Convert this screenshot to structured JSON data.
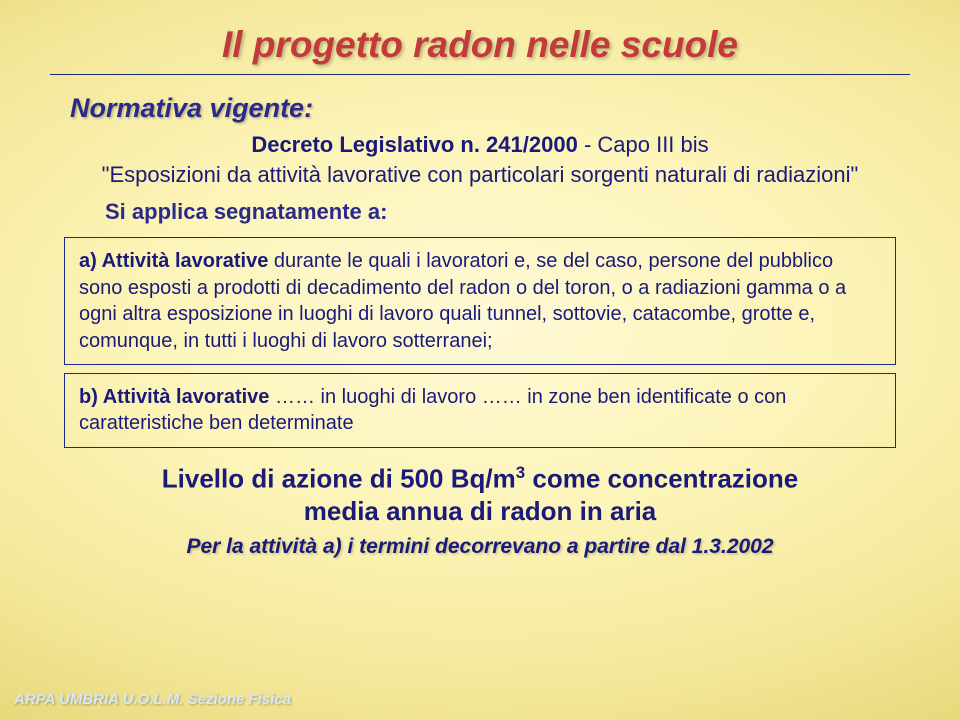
{
  "colors": {
    "title_red": "#c23a3a",
    "text_blue": "#1a1a7a",
    "heading_blue": "#2a2a8c",
    "border_blue": "#1a2a8c",
    "footer": "#d8e8f5",
    "bg_center": "#fef9d6",
    "bg_edge": "#c2ad45"
  },
  "typography": {
    "title_size": 37,
    "subtitle_size": 27,
    "body_size": 22,
    "box_size": 20,
    "level_size": 26,
    "terms_size": 21,
    "footer_size": 15
  },
  "title": "Il progetto radon nelle scuole",
  "subtitle": "Normativa vigente:",
  "decreto": {
    "line1_prefix": "Decreto Legislativo n. 241/2000",
    "line1_suffix": " - Capo III bis",
    "line2": "\"Esposizioni da attività lavorative con particolari sorgenti naturali di radiazioni\""
  },
  "applies": "Si applica segnatamente a:",
  "box_a": {
    "label": "a) Attività lavorative",
    "text": " durante le quali i lavoratori e, se del caso, persone del pubblico sono esposti a prodotti di decadimento del radon o del toron, o a radiazioni gamma o a ogni altra esposizione in luoghi di lavoro quali tunnel, sottovie, catacombe, grotte e, comunque, in tutti i luoghi di lavoro sotterranei;"
  },
  "box_b": {
    "label": "b) Attività lavorative",
    "text": " …… in luoghi di lavoro …… in zone ben identificate o con caratteristiche ben determinate"
  },
  "level_line1": "Livello di azione di 500 Bq/m",
  "level_sup": "3",
  "level_line1b": " come concentrazione",
  "level_line2": "media annua di radon in aria",
  "terms": "Per la attività a) i termini decorrevano a partire dal 1.3.2002",
  "footer": "ARPA UMBRIA U.O.L.M. Sezione Fisica"
}
